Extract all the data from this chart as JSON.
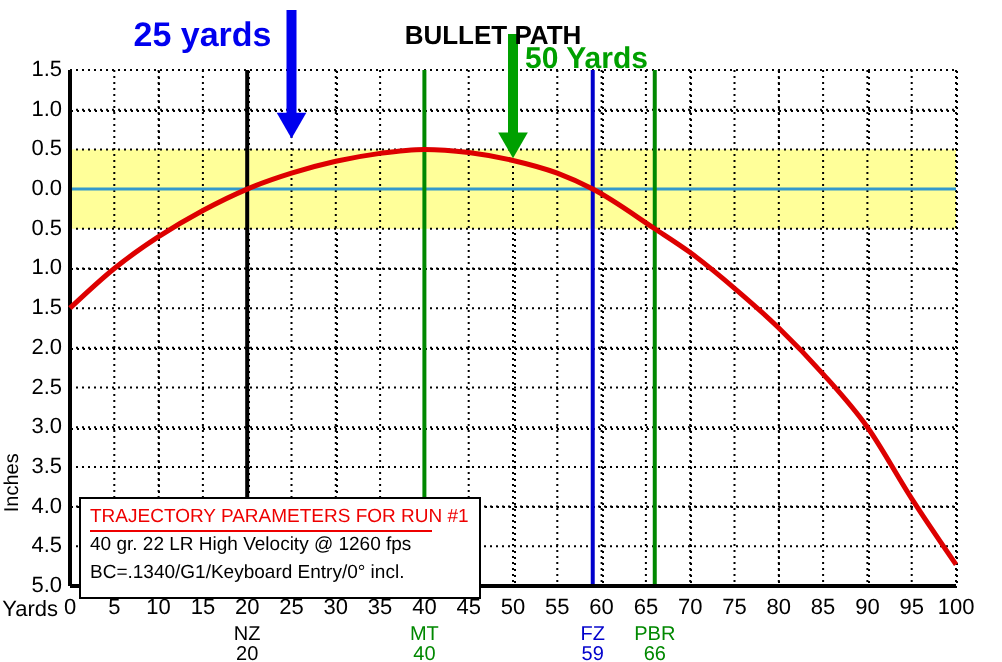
{
  "chart_data": {
    "type": "line",
    "title": "BULLET PATH",
    "xlabel": "Yards",
    "ylabel": "Inches",
    "x": [
      0,
      5,
      10,
      15,
      20,
      25,
      30,
      35,
      40,
      45,
      50,
      55,
      59,
      66,
      70,
      75,
      80,
      85,
      90,
      95,
      100
    ],
    "series": [
      {
        "color": "#dd0000",
        "values": [
          -1.5,
          -1.0,
          -0.6,
          -0.27,
          0,
          0.2,
          0.35,
          0.45,
          0.5,
          0.46,
          0.36,
          0.2,
          0,
          -0.5,
          -0.8,
          -1.25,
          -1.75,
          -2.33,
          -3.0,
          -3.9,
          -4.73
        ]
      }
    ],
    "xlim": [
      0,
      100
    ],
    "xticks": [
      0,
      5,
      10,
      15,
      20,
      25,
      30,
      35,
      40,
      45,
      50,
      55,
      60,
      65,
      70,
      75,
      80,
      85,
      90,
      95,
      100
    ],
    "ylim": [
      -5,
      1.5
    ],
    "yticks": [
      1.5,
      {
        "value": 1,
        "label": "1.0"
      },
      0.5,
      {
        "value": 0,
        "label": "0.0"
      },
      {
        "value": -0.5,
        "label": "0.5"
      },
      {
        "value": -1,
        "label": "1.0"
      },
      {
        "value": -1.5,
        "label": "1.5"
      },
      {
        "value": -2,
        "label": "2.0"
      },
      {
        "value": -2.5,
        "label": "2.5"
      },
      {
        "value": -3,
        "label": "3.0"
      },
      {
        "value": -3.5,
        "label": "3.5"
      },
      {
        "value": -4,
        "label": "4.0"
      },
      {
        "value": -4.5,
        "label": "4.5"
      },
      {
        "value": -5,
        "label": "5.0"
      }
    ],
    "grid": true,
    "line_style": "solid",
    "marker": "none",
    "bands": [
      {
        "axis": "y",
        "from": -0.5,
        "to": 0.5,
        "color": "#ffff99"
      }
    ],
    "ref_lines": [
      {
        "axis": "y",
        "value": 0,
        "color": "#3399cc"
      },
      {
        "axis": "x",
        "value": 20,
        "label": "NZ\n20",
        "color": "#000000"
      },
      {
        "axis": "x",
        "value": 40,
        "label": "MT\n40",
        "color": "#008800"
      },
      {
        "axis": "x",
        "value": 59,
        "label": "FZ\n59",
        "color": "#0000cc"
      },
      {
        "axis": "x",
        "value": 66,
        "label": "PBR\n66",
        "color": "#008800"
      }
    ],
    "annotations": [
      {
        "text": "25 yards",
        "x": 25,
        "y": 0.8
      },
      {
        "text": "50 Yards",
        "x": 50,
        "y": 0.55
      },
      "TRAJECTORY PARAMETERS FOR RUN #1",
      "40 gr. 22 LR High Velocity @ 1260 fps",
      "BC=.1340/G1/Keyboard Entry/0° incl."
    ]
  }
}
